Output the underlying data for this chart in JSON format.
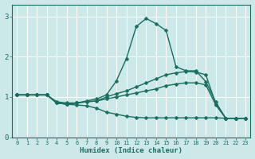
{
  "xlabel": "Humidex (Indice chaleur)",
  "bg_color": "#cce8e8",
  "grid_color": "#ffffff",
  "line_color": "#1a6e5e",
  "xlim": [
    -0.5,
    23.5
  ],
  "ylim": [
    0,
    3.3
  ],
  "yticks": [
    0,
    1,
    2,
    3
  ],
  "xticks": [
    0,
    1,
    2,
    3,
    4,
    5,
    6,
    7,
    8,
    9,
    10,
    11,
    12,
    13,
    14,
    15,
    16,
    17,
    18,
    19,
    20,
    21,
    22,
    23
  ],
  "series": [
    {
      "x": [
        0,
        1,
        2,
        3,
        4,
        5,
        6,
        7,
        8,
        9,
        10,
        11,
        12,
        13,
        14,
        15,
        16,
        17,
        18,
        19,
        20,
        21,
        22,
        23
      ],
      "y": [
        1.05,
        1.05,
        1.05,
        1.05,
        0.85,
        0.82,
        0.85,
        0.9,
        0.95,
        1.05,
        1.4,
        1.95,
        2.75,
        2.95,
        2.82,
        2.65,
        1.75,
        1.65,
        1.65,
        1.38,
        0.87,
        0.47,
        0.47,
        0.47
      ]
    },
    {
      "x": [
        0,
        1,
        2,
        3,
        4,
        5,
        6,
        7,
        8,
        9,
        10,
        11,
        12,
        13,
        14,
        15,
        16,
        17,
        18,
        19,
        20,
        21,
        22,
        23
      ],
      "y": [
        1.05,
        1.05,
        1.05,
        1.05,
        0.85,
        0.82,
        0.85,
        0.88,
        0.9,
        1.0,
        1.08,
        1.15,
        1.25,
        1.35,
        1.45,
        1.55,
        1.6,
        1.63,
        1.62,
        1.55,
        0.83,
        0.47,
        0.47,
        0.47
      ]
    },
    {
      "x": [
        0,
        1,
        2,
        3,
        4,
        5,
        6,
        7,
        8,
        9,
        10,
        11,
        12,
        13,
        14,
        15,
        16,
        17,
        18,
        19,
        20,
        21,
        22,
        23
      ],
      "y": [
        1.05,
        1.05,
        1.05,
        1.05,
        0.88,
        0.85,
        0.85,
        0.88,
        0.9,
        0.95,
        1.0,
        1.05,
        1.1,
        1.15,
        1.2,
        1.28,
        1.32,
        1.35,
        1.35,
        1.3,
        0.8,
        0.47,
        0.47,
        0.47
      ]
    },
    {
      "x": [
        0,
        1,
        2,
        3,
        4,
        5,
        6,
        7,
        8,
        9,
        10,
        11,
        12,
        13,
        14,
        15,
        16,
        17,
        18,
        19,
        20,
        21,
        22,
        23
      ],
      "y": [
        1.05,
        1.05,
        1.05,
        1.05,
        0.85,
        0.82,
        0.8,
        0.78,
        0.72,
        0.62,
        0.57,
        0.52,
        0.49,
        0.48,
        0.48,
        0.48,
        0.48,
        0.48,
        0.48,
        0.48,
        0.48,
        0.47,
        0.47,
        0.47
      ]
    }
  ],
  "markersize": 2.5,
  "linewidth": 1.0
}
